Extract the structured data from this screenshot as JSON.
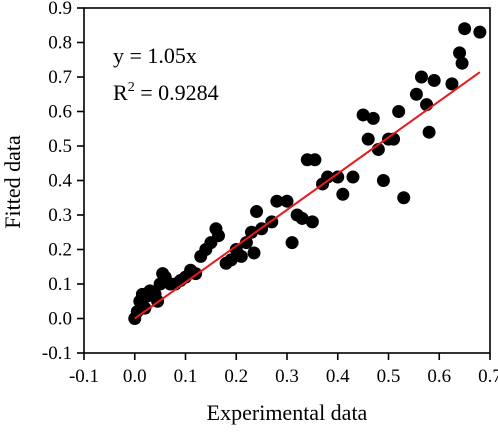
{
  "chart_data": {
    "type": "scatter",
    "xlabel": "Experimental data",
    "ylabel": "Fitted data",
    "xlim": [
      -0.1,
      0.7
    ],
    "ylim": [
      -0.1,
      0.9
    ],
    "xticks": [
      "-0.1",
      "0.0",
      "0.1",
      "0.2",
      "0.3",
      "0.4",
      "0.5",
      "0.6",
      "0.7"
    ],
    "yticks": [
      "-0.1",
      "0.0",
      "0.1",
      "0.2",
      "0.3",
      "0.4",
      "0.5",
      "0.6",
      "0.7",
      "0.8",
      "0.9"
    ],
    "equation": "y = 1.05x",
    "r2_prefix": "R",
    "r2_sup": "2",
    "r2_value": " = 0.9284",
    "fit": {
      "slope": 1.05,
      "x_range": [
        0.0,
        0.68
      ],
      "color": "#e8191c"
    },
    "point_color": "#000000",
    "points": [
      [
        0.0,
        0.0
      ],
      [
        0.005,
        0.02
      ],
      [
        0.01,
        0.05
      ],
      [
        0.015,
        0.07
      ],
      [
        0.02,
        0.03
      ],
      [
        0.025,
        0.065
      ],
      [
        0.03,
        0.08
      ],
      [
        0.04,
        0.07
      ],
      [
        0.045,
        0.05
      ],
      [
        0.05,
        0.1
      ],
      [
        0.055,
        0.13
      ],
      [
        0.06,
        0.12
      ],
      [
        0.07,
        0.1
      ],
      [
        0.08,
        0.1
      ],
      [
        0.09,
        0.11
      ],
      [
        0.1,
        0.12
      ],
      [
        0.11,
        0.14
      ],
      [
        0.12,
        0.13
      ],
      [
        0.13,
        0.18
      ],
      [
        0.14,
        0.2
      ],
      [
        0.15,
        0.22
      ],
      [
        0.16,
        0.26
      ],
      [
        0.165,
        0.24
      ],
      [
        0.18,
        0.16
      ],
      [
        0.19,
        0.17
      ],
      [
        0.2,
        0.2
      ],
      [
        0.21,
        0.18
      ],
      [
        0.22,
        0.22
      ],
      [
        0.23,
        0.25
      ],
      [
        0.235,
        0.19
      ],
      [
        0.24,
        0.31
      ],
      [
        0.25,
        0.26
      ],
      [
        0.27,
        0.28
      ],
      [
        0.28,
        0.34
      ],
      [
        0.3,
        0.34
      ],
      [
        0.31,
        0.22
      ],
      [
        0.32,
        0.3
      ],
      [
        0.33,
        0.29
      ],
      [
        0.34,
        0.46
      ],
      [
        0.35,
        0.28
      ],
      [
        0.355,
        0.46
      ],
      [
        0.37,
        0.39
      ],
      [
        0.38,
        0.41
      ],
      [
        0.4,
        0.41
      ],
      [
        0.41,
        0.36
      ],
      [
        0.43,
        0.41
      ],
      [
        0.45,
        0.59
      ],
      [
        0.46,
        0.52
      ],
      [
        0.47,
        0.58
      ],
      [
        0.48,
        0.49
      ],
      [
        0.49,
        0.4
      ],
      [
        0.5,
        0.52
      ],
      [
        0.51,
        0.52
      ],
      [
        0.52,
        0.6
      ],
      [
        0.53,
        0.35
      ],
      [
        0.555,
        0.65
      ],
      [
        0.565,
        0.7
      ],
      [
        0.575,
        0.62
      ],
      [
        0.58,
        0.54
      ],
      [
        0.59,
        0.69
      ],
      [
        0.625,
        0.68
      ],
      [
        0.64,
        0.77
      ],
      [
        0.645,
        0.74
      ],
      [
        0.65,
        0.84
      ],
      [
        0.68,
        0.83
      ]
    ]
  }
}
